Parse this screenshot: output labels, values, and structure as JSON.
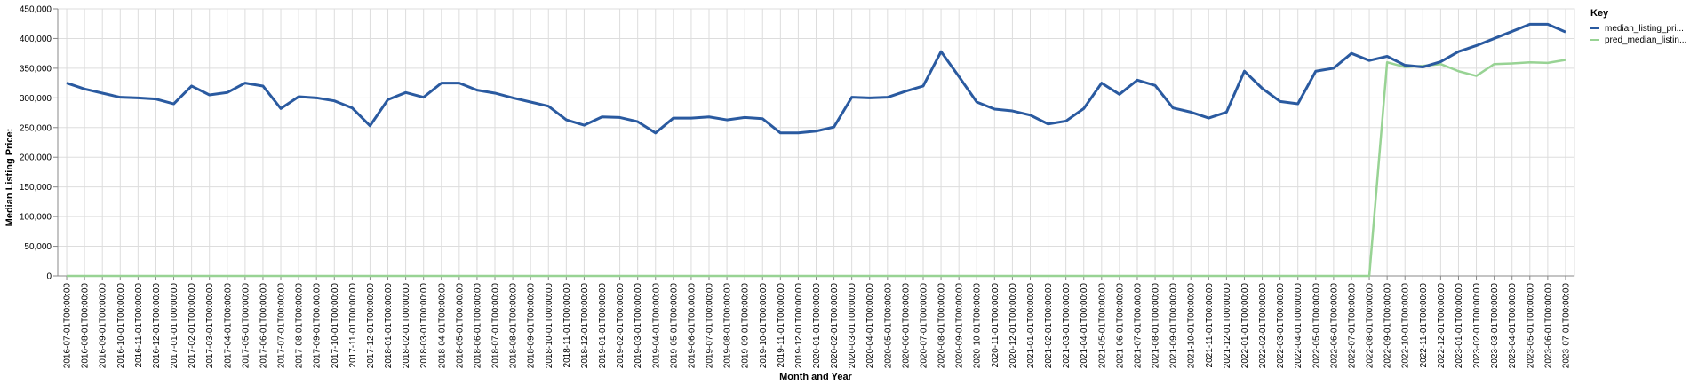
{
  "chart_data": {
    "type": "line",
    "xlabel": "Month and Year",
    "ylabel": "Median Listing Price:",
    "ylim": [
      0,
      450000
    ],
    "yticks": [
      "0",
      "50,000",
      "100,000",
      "150,000",
      "200,000",
      "250,000",
      "300,000",
      "350,000",
      "400,000",
      "450,000"
    ],
    "grid": true,
    "legend": {
      "title": "Key",
      "position": "right"
    },
    "colors": {
      "median_listing_price": "#2a5aa0",
      "pred_median_listing_price": "#98d394",
      "grid": "#dddddd",
      "axis": "#888888"
    },
    "x": [
      "2016-07-01T00:00:00",
      "2016-08-01T00:00:00",
      "2016-09-01T00:00:00",
      "2016-10-01T00:00:00",
      "2016-11-01T00:00:00",
      "2016-12-01T00:00:00",
      "2017-01-01T00:00:00",
      "2017-02-01T00:00:00",
      "2017-03-01T00:00:00",
      "2017-04-01T00:00:00",
      "2017-05-01T00:00:00",
      "2017-06-01T00:00:00",
      "2017-07-01T00:00:00",
      "2017-08-01T00:00:00",
      "2017-09-01T00:00:00",
      "2017-10-01T00:00:00",
      "2017-11-01T00:00:00",
      "2017-12-01T00:00:00",
      "2018-01-01T00:00:00",
      "2018-02-01T00:00:00",
      "2018-03-01T00:00:00",
      "2018-04-01T00:00:00",
      "2018-05-01T00:00:00",
      "2018-06-01T00:00:00",
      "2018-07-01T00:00:00",
      "2018-08-01T00:00:00",
      "2018-09-01T00:00:00",
      "2018-10-01T00:00:00",
      "2018-11-01T00:00:00",
      "2018-12-01T00:00:00",
      "2019-01-01T00:00:00",
      "2019-02-01T00:00:00",
      "2019-03-01T00:00:00",
      "2019-04-01T00:00:00",
      "2019-05-01T00:00:00",
      "2019-06-01T00:00:00",
      "2019-07-01T00:00:00",
      "2019-08-01T00:00:00",
      "2019-09-01T00:00:00",
      "2019-10-01T00:00:00",
      "2019-11-01T00:00:00",
      "2019-12-01T00:00:00",
      "2020-01-01T00:00:00",
      "2020-02-01T00:00:00",
      "2020-03-01T00:00:00",
      "2020-04-01T00:00:00",
      "2020-05-01T00:00:00",
      "2020-06-01T00:00:00",
      "2020-07-01T00:00:00",
      "2020-08-01T00:00:00",
      "2020-09-01T00:00:00",
      "2020-10-01T00:00:00",
      "2020-11-01T00:00:00",
      "2020-12-01T00:00:00",
      "2021-01-01T00:00:00",
      "2021-02-01T00:00:00",
      "2021-03-01T00:00:00",
      "2021-04-01T00:00:00",
      "2021-05-01T00:00:00",
      "2021-06-01T00:00:00",
      "2021-07-01T00:00:00",
      "2021-08-01T00:00:00",
      "2021-09-01T00:00:00",
      "2021-10-01T00:00:00",
      "2021-11-01T00:00:00",
      "2021-12-01T00:00:00",
      "2022-01-01T00:00:00",
      "2022-02-01T00:00:00",
      "2022-03-01T00:00:00",
      "2022-04-01T00:00:00",
      "2022-05-01T00:00:00",
      "2022-06-01T00:00:00",
      "2022-07-01T00:00:00",
      "2022-08-01T00:00:00",
      "2022-09-01T00:00:00",
      "2022-10-01T00:00:00",
      "2022-11-01T00:00:00",
      "2022-12-01T00:00:00",
      "2023-01-01T00:00:00",
      "2023-02-01T00:00:00",
      "2023-03-01T00:00:00",
      "2023-04-01T00:00:00",
      "2023-05-01T00:00:00",
      "2023-06-01T00:00:00",
      "2023-07-01T00:00:00"
    ],
    "series": [
      {
        "name": "median_listing_pri...",
        "values": [
          325000,
          315000,
          308000,
          301000,
          300000,
          298000,
          290000,
          320000,
          305000,
          309000,
          325000,
          320000,
          282000,
          302000,
          300000,
          295000,
          283000,
          253000,
          297000,
          309000,
          301000,
          325000,
          325000,
          313000,
          308000,
          300000,
          293000,
          286000,
          263000,
          254000,
          268000,
          267000,
          260000,
          241000,
          266000,
          266000,
          268000,
          263000,
          267000,
          265000,
          241000,
          241000,
          244000,
          251000,
          301000,
          300000,
          301000,
          311000,
          320000,
          378000,
          336000,
          293000,
          281000,
          278000,
          271000,
          256000,
          261000,
          282000,
          325000,
          306000,
          330000,
          321000,
          283000,
          276000,
          266000,
          276000,
          345000,
          316000,
          294000,
          290000,
          345000,
          350000,
          375000,
          363000,
          370000,
          355000,
          352000,
          361000,
          378000,
          388000,
          400000,
          412000,
          424000,
          424000,
          411000
        ]
      },
      {
        "name": "pred_median_listin...",
        "values": [
          0,
          0,
          0,
          0,
          0,
          0,
          0,
          0,
          0,
          0,
          0,
          0,
          0,
          0,
          0,
          0,
          0,
          0,
          0,
          0,
          0,
          0,
          0,
          0,
          0,
          0,
          0,
          0,
          0,
          0,
          0,
          0,
          0,
          0,
          0,
          0,
          0,
          0,
          0,
          0,
          0,
          0,
          0,
          0,
          0,
          0,
          0,
          0,
          0,
          0,
          0,
          0,
          0,
          0,
          0,
          0,
          0,
          0,
          0,
          0,
          0,
          0,
          0,
          0,
          0,
          0,
          0,
          0,
          0,
          0,
          0,
          0,
          0,
          0,
          360000,
          352000,
          354000,
          357000,
          345000,
          337000,
          357000,
          358000,
          360000,
          359000,
          364000
        ]
      }
    ]
  }
}
